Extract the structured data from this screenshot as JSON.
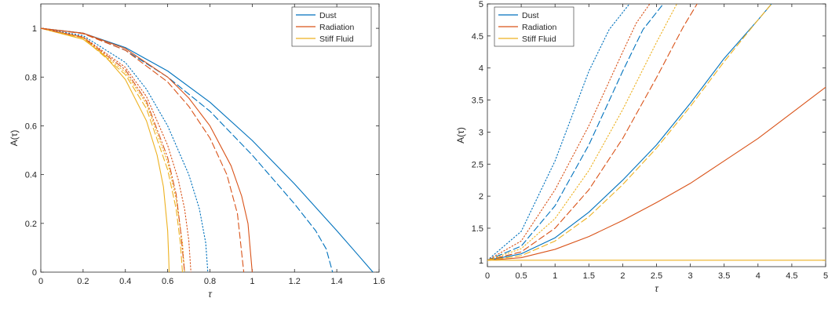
{
  "chart_data": [
    {
      "type": "line",
      "xlabel": "τ",
      "ylabel": "A(τ)",
      "xlim": [
        0,
        1.6
      ],
      "ylim": [
        0,
        1.1
      ],
      "xticks": [
        "0",
        "0.2",
        "0.4",
        "0.6",
        "0.8",
        "1",
        "1.2",
        "1.4",
        "1.6"
      ],
      "yticks": [
        "0",
        "0.2",
        "0.4",
        "0.6",
        "0.8",
        "1"
      ],
      "grid": false,
      "legend_position": "top-right",
      "legend": [
        {
          "name": "Dust",
          "color": "#0072BD"
        },
        {
          "name": "Radiation",
          "color": "#D95319"
        },
        {
          "name": "Stiff Fluid",
          "color": "#EDB120"
        }
      ],
      "series": [
        {
          "name": "Dust",
          "color": "#0072BD",
          "style": "solid",
          "x": [
            0,
            0.2,
            0.4,
            0.6,
            0.8,
            1.0,
            1.2,
            1.4,
            1.5,
            1.55,
            1.571
          ],
          "y": [
            1.0,
            0.98,
            0.921,
            0.825,
            0.697,
            0.54,
            0.362,
            0.17,
            0.071,
            0.021,
            0.0
          ]
        },
        {
          "name": "",
          "color": "#0072BD",
          "style": "dashed",
          "x": [
            0,
            0.2,
            0.4,
            0.6,
            0.8,
            1.0,
            1.2,
            1.3,
            1.35,
            1.38
          ],
          "y": [
            1.0,
            0.98,
            0.91,
            0.8,
            0.66,
            0.48,
            0.28,
            0.17,
            0.095,
            0.0
          ]
        },
        {
          "name": "",
          "color": "#0072BD",
          "style": "dotted",
          "x": [
            0,
            0.2,
            0.4,
            0.5,
            0.6,
            0.7,
            0.75,
            0.78,
            0.79
          ],
          "y": [
            1.0,
            0.97,
            0.86,
            0.75,
            0.6,
            0.4,
            0.26,
            0.12,
            0.0
          ]
        },
        {
          "name": "Radiation",
          "color": "#D95319",
          "style": "solid",
          "x": [
            0,
            0.2,
            0.4,
            0.6,
            0.7,
            0.8,
            0.9,
            0.95,
            0.98,
            1.0
          ],
          "y": [
            1.0,
            0.98,
            0.917,
            0.8,
            0.714,
            0.6,
            0.436,
            0.312,
            0.199,
            0.0
          ]
        },
        {
          "name": "",
          "color": "#D95319",
          "style": "dashed",
          "x": [
            0,
            0.2,
            0.4,
            0.6,
            0.7,
            0.8,
            0.88,
            0.93,
            0.96
          ],
          "y": [
            1.0,
            0.978,
            0.91,
            0.78,
            0.68,
            0.55,
            0.4,
            0.24,
            0.0
          ]
        },
        {
          "name": "",
          "color": "#D95319",
          "style": "dotted",
          "x": [
            0,
            0.2,
            0.4,
            0.5,
            0.6,
            0.65,
            0.68,
            0.7,
            0.71
          ],
          "y": [
            1.0,
            0.965,
            0.84,
            0.72,
            0.52,
            0.38,
            0.26,
            0.13,
            0.0
          ]
        },
        {
          "name": "Stiff Fluid",
          "color": "#EDB120",
          "style": "solid",
          "x": [
            0,
            0.2,
            0.3,
            0.4,
            0.5,
            0.55,
            0.58,
            0.6,
            0.605,
            0.607
          ],
          "y": [
            1.0,
            0.955,
            0.89,
            0.79,
            0.62,
            0.48,
            0.35,
            0.17,
            0.06,
            0.0
          ]
        },
        {
          "name": "",
          "color": "#EDB120",
          "style": "dashed",
          "x": [
            0,
            0.2,
            0.4,
            0.5,
            0.6,
            0.64,
            0.66,
            0.67
          ],
          "y": [
            1.0,
            0.96,
            0.81,
            0.67,
            0.42,
            0.26,
            0.12,
            0.0
          ]
        },
        {
          "name": "",
          "color": "#EDB120",
          "style": "dotted",
          "x": [
            0,
            0.2,
            0.4,
            0.5,
            0.6,
            0.64,
            0.67,
            0.68
          ],
          "y": [
            1.0,
            0.962,
            0.82,
            0.69,
            0.45,
            0.3,
            0.12,
            0.0
          ]
        },
        {
          "name": "",
          "color": "#D95319",
          "style": "dashdot",
          "x": [
            0,
            0.2,
            0.4,
            0.5,
            0.6,
            0.64,
            0.66,
            0.68
          ],
          "y": [
            1.0,
            0.963,
            0.83,
            0.7,
            0.47,
            0.32,
            0.18,
            0.0
          ]
        }
      ]
    },
    {
      "type": "line",
      "xlabel": "τ",
      "ylabel": "A(τ)",
      "xlim": [
        0,
        5
      ],
      "ylim": [
        0.9,
        5
      ],
      "xticks": [
        "0",
        "0.5",
        "1",
        "1.5",
        "2",
        "2.5",
        "3",
        "3.5",
        "4",
        "4.5",
        "5"
      ],
      "yticks": [
        "1",
        "1.5",
        "2",
        "2.5",
        "3",
        "3.5",
        "4",
        "4.5",
        "5"
      ],
      "grid": false,
      "legend_position": "top-left",
      "legend": [
        {
          "name": "Dust",
          "color": "#0072BD"
        },
        {
          "name": "Radiation",
          "color": "#D95319"
        },
        {
          "name": "Stiff Fluid",
          "color": "#EDB120"
        }
      ],
      "series": [
        {
          "name": "Dust",
          "color": "#0072BD",
          "style": "solid",
          "x": [
            0,
            0.5,
            1,
            1.5,
            2,
            2.5,
            3,
            3.5,
            4,
            4.2
          ],
          "y": [
            1.0,
            1.1,
            1.35,
            1.75,
            2.25,
            2.8,
            3.45,
            4.15,
            4.75,
            5.0
          ]
        },
        {
          "name": "",
          "color": "#0072BD",
          "style": "dashed",
          "x": [
            0,
            0.5,
            1,
            1.5,
            2,
            2.3,
            2.6
          ],
          "y": [
            1.0,
            1.22,
            1.85,
            2.8,
            3.95,
            4.6,
            5.0
          ]
        },
        {
          "name": "",
          "color": "#0072BD",
          "style": "dotted",
          "x": [
            0,
            0.5,
            1,
            1.5,
            1.8,
            2.1
          ],
          "y": [
            1.0,
            1.45,
            2.55,
            3.95,
            4.6,
            5.0
          ]
        },
        {
          "name": "Radiation",
          "color": "#D95319",
          "style": "solid",
          "x": [
            0,
            0.5,
            1,
            1.5,
            2,
            2.5,
            3,
            3.5,
            4,
            4.5,
            5
          ],
          "y": [
            1.0,
            1.04,
            1.17,
            1.37,
            1.62,
            1.9,
            2.2,
            2.55,
            2.9,
            3.3,
            3.7
          ]
        },
        {
          "name": "",
          "color": "#D95319",
          "style": "dashed",
          "x": [
            0,
            0.5,
            1,
            1.5,
            2,
            2.5,
            2.9,
            3.1
          ],
          "y": [
            1.0,
            1.13,
            1.5,
            2.1,
            2.9,
            3.85,
            4.65,
            5.0
          ]
        },
        {
          "name": "",
          "color": "#D95319",
          "style": "dotted",
          "x": [
            0,
            0.5,
            1,
            1.5,
            2,
            2.2,
            2.4
          ],
          "y": [
            1.0,
            1.3,
            2.1,
            3.1,
            4.25,
            4.7,
            5.0
          ]
        },
        {
          "name": "Stiff Fluid",
          "color": "#EDB120",
          "style": "solid",
          "x": [
            0,
            5
          ],
          "y": [
            1.0,
            1.0
          ]
        },
        {
          "name": "",
          "color": "#EDB120",
          "style": "dashed",
          "x": [
            0,
            0.5,
            1,
            1.5,
            2,
            2.5,
            3,
            3.5,
            4,
            4.2
          ],
          "y": [
            1.0,
            1.07,
            1.3,
            1.68,
            2.18,
            2.75,
            3.4,
            4.1,
            4.75,
            5.0
          ]
        },
        {
          "name": "",
          "color": "#EDB120",
          "style": "dotted",
          "x": [
            0,
            0.5,
            1,
            1.5,
            2,
            2.5,
            2.8
          ],
          "y": [
            1.0,
            1.18,
            1.65,
            2.4,
            3.35,
            4.4,
            5.0
          ]
        }
      ]
    }
  ]
}
